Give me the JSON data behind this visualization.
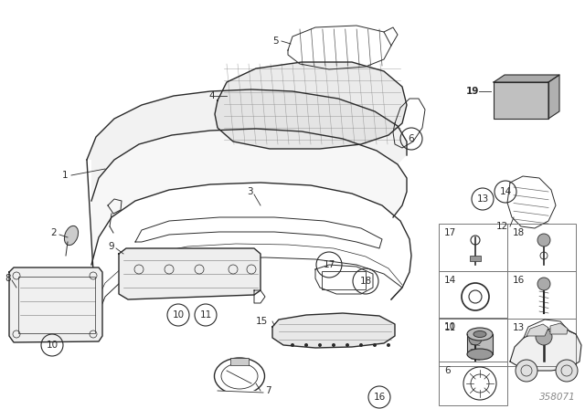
{
  "bg_color": "#ffffff",
  "part_number": "358071",
  "fig_width": 6.4,
  "fig_height": 4.48,
  "dpi": 100,
  "line_color": "#2a2a2a",
  "light_line": "#666666",
  "fill_light": "#e8e8e8",
  "fill_med": "#cccccc",
  "fill_dark": "#aaaaaa"
}
